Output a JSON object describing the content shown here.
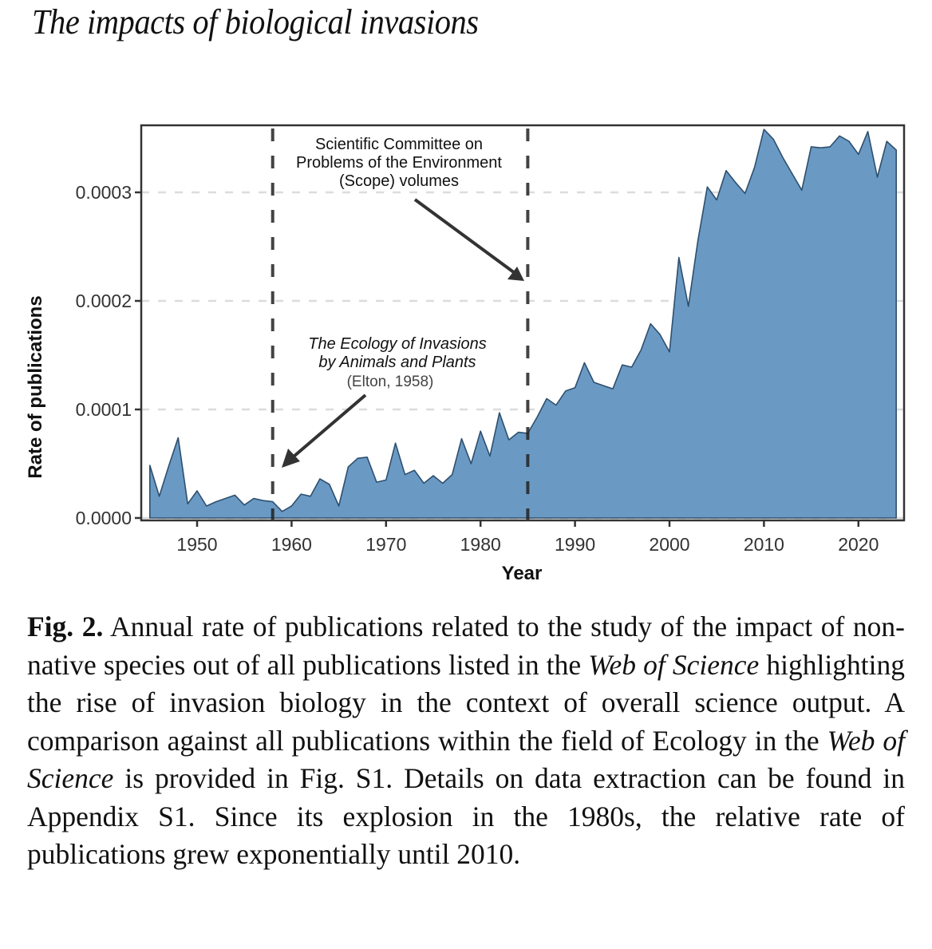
{
  "running_head": "The impacts of biological invasions",
  "caption": {
    "label": "Fig. 2.",
    "text_1": " Annual rate of publications related to the study of the impact of non-native species out of all publications listed in the ",
    "italic_1": "Web of Science",
    "text_2": " highlighting the rise of invasion biology in the context of overall science output. A comparison against all publications within the field of Ecology in the ",
    "italic_2": "Web of Science",
    "text_3": " is provided in Fig. S1. Details on data extraction can be found in Appendix S1. Since its explosion in the 1980s, the relative rate of publications grew exponentially until 2010."
  },
  "chart_data": {
    "type": "area",
    "title": "",
    "xlabel": "Year",
    "ylabel": "Rate of publications",
    "xlim": [
      1944.5,
      2025
    ],
    "ylim": [
      0,
      0.000362
    ],
    "x_ticks": [
      1950,
      1960,
      1970,
      1980,
      1990,
      2000,
      2010,
      2020
    ],
    "x_tick_labels": [
      "1950",
      "1960",
      "1970",
      "1980",
      "1990",
      "2000",
      "2010",
      "2020"
    ],
    "y_ticks": [
      0,
      0.0001,
      0.0002,
      0.0003
    ],
    "y_tick_labels": [
      "0.0000",
      "0.0001",
      "0.0002",
      "0.0003"
    ],
    "grid": "horizontal-dashed",
    "fill_color": "#6a9ac4",
    "line_color": "#2e4f6e",
    "x": [
      1945,
      1946,
      1947,
      1948,
      1949,
      1950,
      1951,
      1952,
      1953,
      1954,
      1955,
      1956,
      1957,
      1958,
      1959,
      1960,
      1961,
      1962,
      1963,
      1964,
      1965,
      1966,
      1967,
      1968,
      1969,
      1970,
      1971,
      1972,
      1973,
      1974,
      1975,
      1976,
      1977,
      1978,
      1979,
      1980,
      1981,
      1982,
      1983,
      1984,
      1985,
      1986,
      1987,
      1988,
      1989,
      1990,
      1991,
      1992,
      1993,
      1994,
      1995,
      1996,
      1997,
      1998,
      1999,
      2000,
      2001,
      2002,
      2003,
      2004,
      2005,
      2006,
      2007,
      2008,
      2009,
      2010,
      2011,
      2012,
      2013,
      2014,
      2015,
      2016,
      2017,
      2018,
      2019,
      2020,
      2021,
      2022,
      2023,
      2024
    ],
    "values": [
      4.85e-05,
      2e-05,
      4.8e-05,
      7.4e-05,
      1.3e-05,
      2.5e-05,
      1.1e-05,
      1.5e-05,
      1.8e-05,
      2.1e-05,
      1.2e-05,
      1.8e-05,
      1.6e-05,
      1.5e-05,
      6e-06,
      1.1e-05,
      2.2e-05,
      2e-05,
      3.6e-05,
      3.1e-05,
      1.1e-05,
      4.7e-05,
      5.5e-05,
      5.6e-05,
      3.3e-05,
      3.5e-05,
      6.9e-05,
      4e-05,
      4.4e-05,
      3.2e-05,
      3.9e-05,
      3.2e-05,
      4e-05,
      7.3e-05,
      5e-05,
      8e-05,
      5.7e-05,
      9.7e-05,
      7.2e-05,
      7.9e-05,
      7.8e-05,
      9.3e-05,
      0.00011,
      0.000104,
      0.000117,
      0.00012,
      0.000143,
      0.000125,
      0.000122,
      0.000119,
      0.000141,
      0.000139,
      0.000155,
      0.000179,
      0.000169,
      0.000153,
      0.00024,
      0.000195,
      0.000255,
      0.000305,
      0.000293,
      0.00032,
      0.000309,
      0.000299,
      0.000323,
      0.000358,
      0.000349,
      0.000332,
      0.000317,
      0.000302,
      0.000342,
      0.000341,
      0.000342,
      0.000352,
      0.000347,
      0.000335,
      0.000356,
      0.000314,
      0.000347,
      0.000339
    ],
    "annotations": [
      {
        "kind": "vline",
        "x": 1958,
        "style": "dashed"
      },
      {
        "kind": "vline",
        "x": 1985,
        "style": "dashed"
      },
      {
        "kind": "label",
        "lines": [
          "Scientific Committee on",
          "Problems of the Environment",
          "(Scope) volumes"
        ],
        "arrow_to_x": 1985
      },
      {
        "kind": "label",
        "lines": [
          "The Ecology of Invasions",
          "by Animals and Plants",
          "(Elton, 1958)"
        ],
        "arrow_to_x": 1958
      }
    ]
  }
}
